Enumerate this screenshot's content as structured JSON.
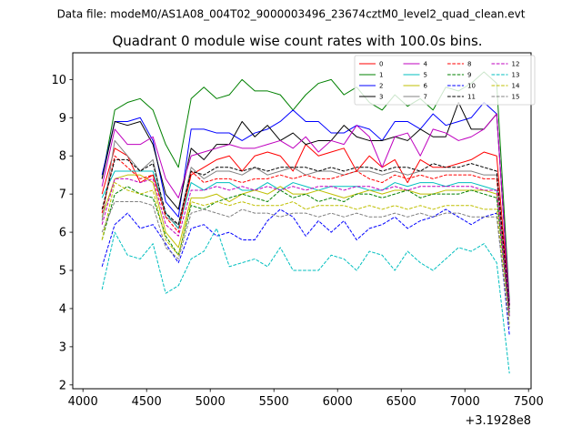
{
  "figure": {
    "suptitle": "Data file: modeM0/AS1A08_004T02_9000003496_23674cztM0_level2_quad_clean.evt"
  },
  "chart_data": {
    "type": "line",
    "title": "Quadrant 0 module wise count rates with 100.0s bins.",
    "xlabel": "",
    "ylabel": "",
    "x_offset_label": "+3.1928e8",
    "xlim": [
      3920,
      7520
    ],
    "ylim": [
      1.9,
      10.7
    ],
    "xticks": [
      4000,
      4500,
      5000,
      5500,
      6000,
      6500,
      7000,
      7500
    ],
    "yticks": [
      2,
      3,
      4,
      5,
      6,
      7,
      8,
      9,
      10
    ],
    "grid": false,
    "legend": {
      "placement": "top-right",
      "columns": 4
    },
    "x": [
      4150,
      4250,
      4350,
      4450,
      4550,
      4650,
      4750,
      4850,
      4950,
      5050,
      5150,
      5250,
      5350,
      5450,
      5550,
      5650,
      5750,
      5850,
      5950,
      6050,
      6150,
      6250,
      6350,
      6450,
      6550,
      6650,
      6750,
      6850,
      6950,
      7050,
      7150,
      7250,
      7350
    ],
    "series": [
      {
        "name": "0",
        "color": "#ff0000",
        "dash": "solid",
        "values": [
          7.0,
          8.2,
          8.0,
          7.3,
          7.5,
          6.5,
          6.1,
          7.5,
          7.7,
          7.9,
          8.0,
          7.6,
          8.0,
          8.1,
          8.0,
          7.6,
          8.3,
          8.0,
          8.1,
          8.2,
          7.6,
          8.0,
          7.7,
          7.9,
          7.3,
          7.9,
          7.7,
          7.7,
          7.8,
          7.9,
          8.1,
          8.0,
          4.1
        ]
      },
      {
        "name": "1",
        "color": "#008000",
        "dash": "solid",
        "values": [
          7.4,
          9.2,
          9.4,
          9.5,
          9.2,
          8.3,
          7.7,
          9.5,
          9.8,
          9.5,
          9.6,
          10.0,
          9.7,
          9.7,
          9.6,
          9.2,
          9.6,
          9.9,
          10.0,
          9.6,
          9.8,
          9.4,
          9.2,
          9.6,
          9.3,
          9.5,
          9.2,
          9.8,
          9.7,
          9.9,
          10.2,
          9.9,
          4.2
        ]
      },
      {
        "name": "2",
        "color": "#0000ff",
        "dash": "solid",
        "values": [
          7.5,
          8.9,
          8.9,
          9.0,
          8.4,
          6.8,
          6.4,
          8.7,
          8.7,
          8.6,
          8.6,
          8.4,
          8.6,
          8.7,
          8.9,
          9.2,
          8.9,
          8.9,
          8.6,
          8.6,
          8.8,
          8.7,
          8.4,
          8.9,
          8.9,
          8.7,
          9.1,
          8.8,
          8.9,
          9.0,
          9.4,
          9.1,
          4.1
        ]
      },
      {
        "name": "3",
        "color": "#000000",
        "dash": "solid",
        "values": [
          7.4,
          8.9,
          8.8,
          8.9,
          8.3,
          7.0,
          6.6,
          8.2,
          7.9,
          8.3,
          8.3,
          8.9,
          8.5,
          8.8,
          8.4,
          8.6,
          8.3,
          8.4,
          8.4,
          8.8,
          8.5,
          8.4,
          8.4,
          8.5,
          8.4,
          8.7,
          8.5,
          8.5,
          9.4,
          8.7,
          8.7,
          9.1,
          4.1
        ]
      },
      {
        "name": "4",
        "color": "#bf00bf",
        "dash": "solid",
        "values": [
          7.2,
          8.7,
          8.3,
          8.3,
          8.5,
          7.4,
          6.9,
          8.0,
          8.1,
          8.2,
          8.3,
          8.2,
          8.2,
          8.3,
          8.4,
          8.2,
          8.5,
          8.1,
          8.4,
          8.3,
          8.8,
          8.5,
          7.7,
          8.5,
          8.6,
          8.0,
          8.7,
          8.6,
          8.4,
          8.5,
          8.7,
          9.1,
          4.1
        ]
      },
      {
        "name": "5",
        "color": "#00bfbf",
        "dash": "solid",
        "values": [
          6.9,
          7.6,
          7.6,
          7.6,
          7.6,
          6.5,
          6.1,
          7.3,
          7.1,
          7.3,
          7.3,
          7.1,
          7.1,
          7.3,
          7.1,
          7.3,
          7.2,
          7.1,
          7.2,
          7.2,
          7.2,
          7.1,
          7.1,
          7.3,
          7.2,
          7.3,
          7.3,
          7.2,
          7.3,
          7.3,
          7.2,
          7.1,
          3.9
        ]
      },
      {
        "name": "6",
        "color": "#bfbf00",
        "dash": "solid",
        "values": [
          6.4,
          7.4,
          7.5,
          7.5,
          7.3,
          6.0,
          5.6,
          6.9,
          6.9,
          7.0,
          6.8,
          7.0,
          7.1,
          7.0,
          7.2,
          7.0,
          7.0,
          7.1,
          7.0,
          6.9,
          7.0,
          7.1,
          7.0,
          7.1,
          7.1,
          7.0,
          7.0,
          7.1,
          7.1,
          7.1,
          7.1,
          7.0,
          3.8
        ]
      },
      {
        "name": "7",
        "color": "#808080",
        "dash": "solid",
        "values": [
          6.3,
          8.4,
          8.0,
          7.6,
          7.9,
          6.4,
          6.2,
          7.7,
          7.4,
          7.6,
          7.6,
          7.5,
          7.7,
          7.5,
          7.6,
          7.7,
          7.5,
          7.6,
          7.6,
          7.5,
          7.6,
          7.6,
          7.5,
          7.6,
          7.5,
          7.6,
          7.6,
          7.6,
          7.6,
          7.6,
          7.5,
          7.5,
          3.9
        ]
      },
      {
        "name": "8",
        "color": "#ff0000",
        "dash": "dashed",
        "values": [
          6.5,
          8.0,
          7.7,
          7.4,
          7.5,
          6.4,
          6.0,
          7.6,
          7.3,
          7.4,
          7.4,
          7.3,
          7.4,
          7.4,
          7.5,
          7.4,
          7.5,
          7.4,
          7.4,
          7.5,
          7.6,
          7.4,
          7.3,
          7.5,
          7.4,
          7.5,
          7.4,
          7.5,
          7.5,
          7.5,
          7.4,
          7.4,
          4.0
        ]
      },
      {
        "name": "9",
        "color": "#008000",
        "dash": "dashed",
        "values": [
          5.8,
          7.0,
          7.2,
          7.0,
          6.9,
          5.9,
          5.4,
          6.7,
          6.6,
          6.8,
          6.9,
          7.0,
          6.9,
          6.8,
          7.1,
          6.9,
          7.0,
          6.8,
          6.9,
          6.8,
          7.0,
          7.0,
          6.9,
          7.0,
          7.1,
          6.9,
          7.0,
          7.0,
          7.0,
          7.1,
          7.0,
          6.9,
          3.8
        ]
      },
      {
        "name": "10",
        "color": "#0000ff",
        "dash": "dashed",
        "values": [
          5.1,
          6.2,
          6.5,
          6.1,
          6.2,
          5.7,
          5.2,
          6.1,
          6.2,
          5.9,
          6.0,
          5.8,
          5.8,
          6.3,
          6.6,
          6.4,
          5.9,
          6.3,
          6.0,
          6.3,
          5.8,
          6.1,
          6.2,
          6.4,
          6.1,
          6.3,
          6.4,
          6.6,
          6.4,
          6.2,
          6.4,
          6.5,
          3.3
        ]
      },
      {
        "name": "11",
        "color": "#000000",
        "dash": "dashed",
        "values": [
          6.6,
          7.9,
          7.9,
          7.6,
          7.8,
          6.5,
          6.2,
          7.6,
          7.5,
          7.7,
          7.7,
          7.6,
          7.7,
          7.6,
          7.7,
          7.7,
          7.7,
          7.6,
          7.7,
          7.6,
          7.7,
          7.7,
          7.6,
          7.7,
          7.7,
          7.6,
          7.8,
          7.7,
          7.7,
          7.8,
          7.7,
          7.6,
          4.0
        ]
      },
      {
        "name": "12",
        "color": "#bf00bf",
        "dash": "dashed",
        "values": [
          6.2,
          7.4,
          7.4,
          7.3,
          7.4,
          6.2,
          5.9,
          7.1,
          7.1,
          7.2,
          7.1,
          7.2,
          7.1,
          7.2,
          7.1,
          7.2,
          7.1,
          7.2,
          7.2,
          7.1,
          7.2,
          7.2,
          7.1,
          7.2,
          7.1,
          7.2,
          7.2,
          7.2,
          7.2,
          7.2,
          7.1,
          7.1,
          3.8
        ]
      },
      {
        "name": "13",
        "color": "#00bfbf",
        "dash": "dashed",
        "values": [
          4.5,
          6.0,
          5.4,
          5.3,
          5.7,
          4.4,
          4.6,
          5.3,
          5.5,
          6.1,
          5.1,
          5.2,
          5.3,
          5.1,
          5.6,
          5.0,
          5.0,
          5.0,
          5.4,
          5.3,
          5.0,
          5.5,
          5.4,
          5.0,
          5.5,
          5.2,
          5.0,
          5.3,
          5.6,
          5.5,
          5.7,
          5.2,
          2.3
        ]
      },
      {
        "name": "14",
        "color": "#bfbf00",
        "dash": "dashed",
        "values": [
          5.8,
          7.3,
          7.1,
          7.0,
          7.1,
          5.8,
          5.4,
          6.8,
          6.7,
          6.8,
          6.7,
          6.8,
          6.7,
          6.7,
          6.7,
          6.8,
          6.6,
          6.7,
          6.7,
          6.7,
          6.6,
          6.7,
          6.6,
          6.7,
          6.6,
          6.7,
          6.6,
          6.7,
          6.7,
          6.7,
          6.6,
          6.6,
          3.6
        ]
      },
      {
        "name": "15",
        "color": "#808080",
        "dash": "dashed",
        "values": [
          6.0,
          6.8,
          6.8,
          6.8,
          6.7,
          5.6,
          5.3,
          6.5,
          6.6,
          6.5,
          6.4,
          6.6,
          6.5,
          6.5,
          6.4,
          6.5,
          6.5,
          6.4,
          6.5,
          6.4,
          6.5,
          6.4,
          6.4,
          6.5,
          6.4,
          6.5,
          6.4,
          6.5,
          6.5,
          6.4,
          6.4,
          6.4,
          3.5
        ]
      }
    ]
  }
}
